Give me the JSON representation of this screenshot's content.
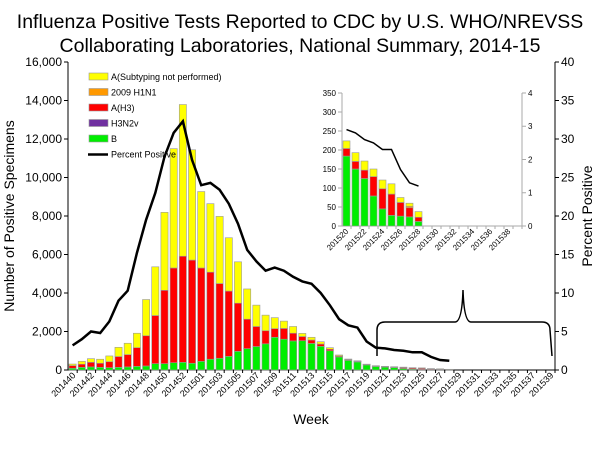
{
  "chart_data": {
    "type": "bar",
    "title": [
      "Influenza Positive Tests Reported to CDC by U.S. WHO/NREVSS",
      "Collaborating Laboratories, National Summary, 2014-15"
    ],
    "xlabel": "Week",
    "ylabel": "Number of Positive Specimens",
    "y2label": "Percent Positive",
    "ylim": [
      0,
      16000
    ],
    "y2lim": [
      0,
      40
    ],
    "yticks": [
      "0",
      "2,000",
      "4,000",
      "6,000",
      "8,000",
      "10,000",
      "12,000",
      "14,000",
      "16,000"
    ],
    "y2ticks": [
      "0",
      "5",
      "10",
      "15",
      "20",
      "25",
      "30",
      "35",
      "40"
    ],
    "legend_position": "top-left",
    "categories": [
      "201440",
      "201441",
      "201442",
      "201443",
      "201444",
      "201445",
      "201446",
      "201447",
      "201448",
      "201449",
      "201450",
      "201451",
      "201452",
      "201453",
      "201501",
      "201502",
      "201503",
      "201504",
      "201505",
      "201506",
      "201507",
      "201508",
      "201509",
      "201510",
      "201511",
      "201512",
      "201513",
      "201514",
      "201515",
      "201516",
      "201517",
      "201518",
      "201519",
      "201520",
      "201521",
      "201522",
      "201523",
      "201524",
      "201525",
      "201526",
      "201527",
      "201528",
      "201529",
      "201530",
      "201531",
      "201532",
      "201533",
      "201534",
      "201535",
      "201536",
      "201537",
      "201538",
      "201539"
    ],
    "series": [
      {
        "name": "B",
        "kind": "bar",
        "color": "#00EE00",
        "values": [
          90,
          140,
          160,
          140,
          120,
          140,
          160,
          190,
          210,
          330,
          330,
          380,
          400,
          350,
          450,
          560,
          610,
          710,
          970,
          1110,
          1220,
          1360,
          1700,
          1600,
          1510,
          1520,
          1380,
          1230,
          1000,
          680,
          500,
          420,
          264,
          184,
          150,
          125,
          79,
          45,
          28,
          26,
          24,
          12,
          0,
          0,
          0,
          0,
          0,
          0,
          0,
          0,
          0,
          0,
          0
        ]
      },
      {
        "name": "H3N2v",
        "kind": "bar",
        "color": "#7030A0",
        "values": [
          0,
          0,
          0,
          0,
          0,
          0,
          0,
          0,
          0,
          0,
          0,
          0,
          0,
          0,
          0,
          0,
          0,
          0,
          0,
          0,
          0,
          0,
          0,
          0,
          0,
          0,
          0,
          0,
          0,
          0,
          0,
          0,
          0,
          0,
          0,
          0,
          0,
          0,
          0,
          0,
          0,
          0,
          0,
          0,
          0,
          0,
          0,
          0,
          0,
          0,
          0,
          0,
          0
        ]
      },
      {
        "name": "A(H3)",
        "kind": "bar",
        "color": "#FF0000",
        "values": [
          140,
          160,
          240,
          210,
          310,
          560,
          640,
          970,
          1570,
          2500,
          3810,
          4920,
          5510,
          5360,
          4850,
          4520,
          3880,
          3390,
          2500,
          1530,
          1040,
          680,
          450,
          560,
          400,
          220,
          180,
          120,
          80,
          50,
          40,
          30,
          21,
          20,
          20,
          22,
          51,
          53,
          56,
          36,
          24,
          11,
          0,
          0,
          0,
          0,
          0,
          0,
          0,
          0,
          0,
          0,
          0
        ]
      },
      {
        "name": "2009 H1N1",
        "kind": "bar",
        "color": "#FF9900",
        "values": [
          0,
          0,
          0,
          0,
          0,
          0,
          0,
          0,
          0,
          0,
          0,
          0,
          0,
          0,
          0,
          0,
          0,
          0,
          0,
          0,
          0,
          0,
          0,
          0,
          0,
          0,
          0,
          0,
          0,
          0,
          0,
          0,
          0,
          0,
          0,
          0,
          0,
          0,
          0,
          0,
          4,
          0,
          0,
          0,
          0,
          0,
          0,
          0,
          0,
          0,
          0,
          0,
          0
        ]
      },
      {
        "name": "A(Subtyping not performed)",
        "kind": "bar",
        "color": "#FFFF00",
        "values": [
          80,
          150,
          190,
          210,
          300,
          480,
          590,
          750,
          1880,
          2530,
          4050,
          6200,
          7880,
          5730,
          3970,
          3560,
          3490,
          2770,
          2150,
          1570,
          1110,
          810,
          570,
          380,
          350,
          160,
          140,
          120,
          80,
          50,
          30,
          30,
          19,
          20,
          23,
          24,
          20,
          23,
          27,
          13,
          8,
          15,
          0,
          0,
          0,
          0,
          0,
          0,
          0,
          0,
          0,
          0,
          0
        ]
      },
      {
        "name": "Percent Positive",
        "kind": "line",
        "axis": "right",
        "color": "#000000",
        "values": [
          3.2,
          4.0,
          5.0,
          4.8,
          6.3,
          9.0,
          10.3,
          15.2,
          19.5,
          23.0,
          27.7,
          30.8,
          32.3,
          27.3,
          24.0,
          24.3,
          23.4,
          21.6,
          19.0,
          15.6,
          14.1,
          12.9,
          13.3,
          12.9,
          12.1,
          11.5,
          11.2,
          10.0,
          8.4,
          6.6,
          5.8,
          5.5,
          3.7,
          2.9,
          2.8,
          2.6,
          2.5,
          2.3,
          2.3,
          1.7,
          1.3,
          1.2,
          null,
          null,
          null,
          null,
          null,
          null,
          null,
          null,
          null,
          null,
          null
        ]
      }
    ],
    "legend": [
      "A(Subtyping not performed)",
      "2009 H1N1",
      "A(H3)",
      "H3N2v",
      "B",
      "Percent Positive"
    ],
    "inset": {
      "type": "bar",
      "categories_range": [
        "201520",
        "201539"
      ],
      "ylim": [
        0,
        350
      ],
      "y2lim": [
        0,
        4
      ],
      "yticks": [
        "0",
        "50",
        "100",
        "150",
        "200",
        "250",
        "300",
        "350"
      ],
      "y2ticks": [
        "0",
        "1",
        "2",
        "3",
        "4"
      ],
      "xticks": [
        "201520",
        "201522",
        "201524",
        "201526",
        "201528",
        "201530",
        "201532",
        "201534",
        "201536",
        "201538"
      ]
    }
  }
}
